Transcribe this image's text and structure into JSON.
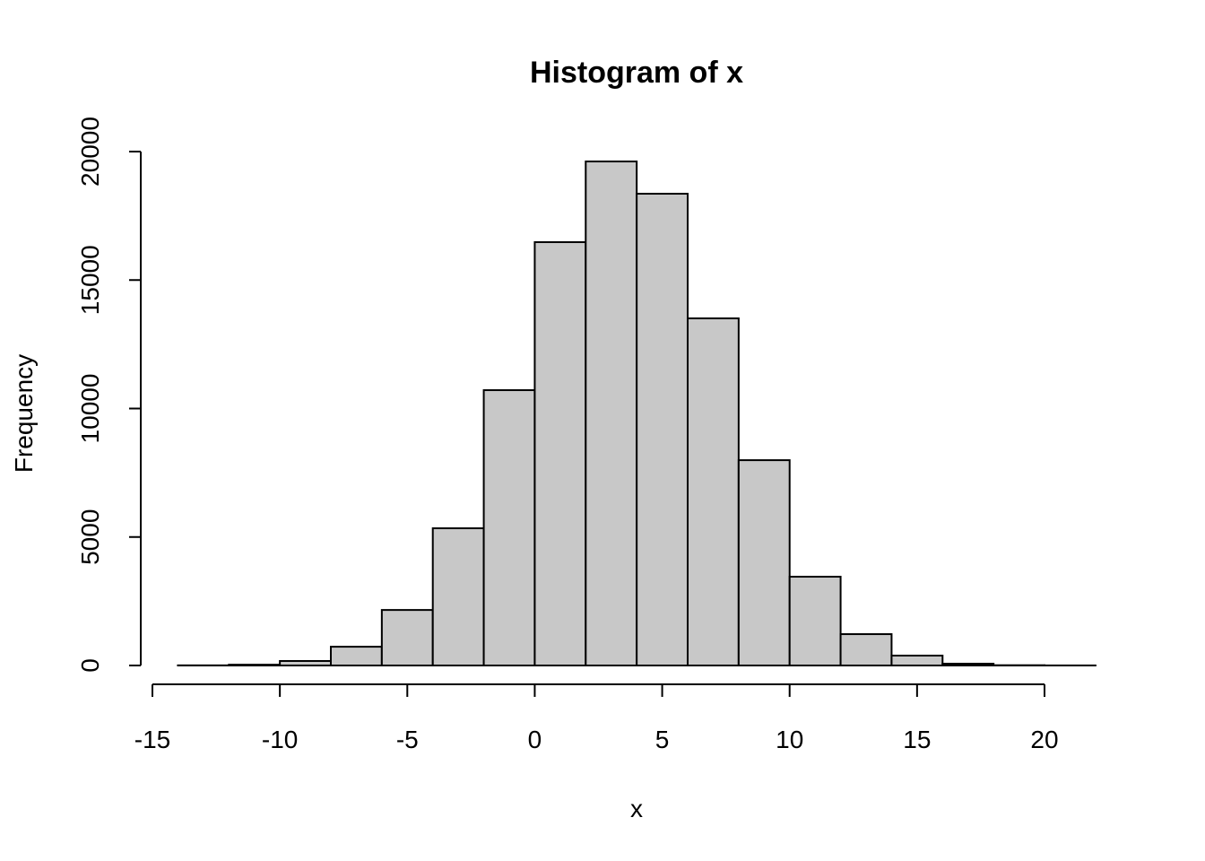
{
  "chart_data": {
    "type": "histogram",
    "title": "Histogram of x",
    "x_label": "x",
    "y_label": "Frequency",
    "bins": [
      -14,
      -12,
      -10,
      -8,
      -6,
      -4,
      -2,
      0,
      2,
      4,
      6,
      8,
      10,
      12,
      14,
      16,
      18,
      20,
      22
    ],
    "values": [
      5,
      30,
      175,
      730,
      2160,
      5340,
      10715,
      16475,
      19615,
      18360,
      13510,
      7990,
      3455,
      1220,
      385,
      70,
      10,
      2
    ],
    "color": "#c8c8c8",
    "xlim": [
      -15,
      20
    ],
    "xticks": [
      -15,
      -10,
      -5,
      0,
      5,
      10,
      15,
      20
    ],
    "ylim": [
      0,
      20000
    ],
    "yticks": [
      0,
      5000,
      10000,
      15000,
      20000
    ]
  }
}
